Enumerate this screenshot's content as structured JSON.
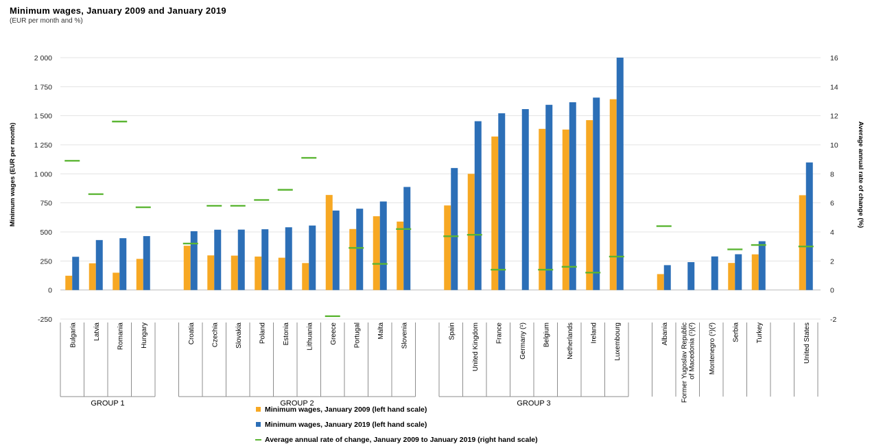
{
  "title": "Minimum wages, January 2009 and January 2019",
  "subtitle": "(EUR per month and %)",
  "chart_data": {
    "type": "bar",
    "title": "Minimum wages, January 2009 and January 2019",
    "subtitle": "(EUR per month and %)",
    "ylabel": "Minimum wages (EUR per month)",
    "y2label": "Average annual rate of change (%)",
    "ylim": [
      -250,
      2000
    ],
    "y_ticks": [
      -250,
      0,
      250,
      500,
      750,
      1000,
      1250,
      1500,
      1750,
      2000
    ],
    "y_tick_labels": [
      "-250",
      "0",
      "250",
      "500",
      "750",
      "1 000",
      "1 250",
      "1 500",
      "1 750",
      "2 000"
    ],
    "y2lim": [
      -2,
      16
    ],
    "y2_ticks": [
      -2,
      0,
      2,
      4,
      6,
      8,
      10,
      12,
      14,
      16
    ],
    "grid": true,
    "legend_position": "bottom",
    "categories": [
      "Bulgaria",
      "Latvia",
      "Romania",
      "Hungary",
      "",
      "Croatia",
      "Czechia",
      "Slovakia",
      "Poland",
      "Estonia",
      "Lithuania",
      "Greece",
      "Portugal",
      "Malta",
      "Slovenia",
      "",
      "Spain",
      "United Kingdom",
      "France",
      "Germany (¹)",
      "Belgium",
      "Netherlands",
      "Ireland",
      "Luxembourg",
      "",
      "Albania",
      "Former Yugoslav Republic of Macedonia (¹)(²)",
      "Montenegro (¹)(²)",
      "Serbia",
      "Turkey",
      "",
      "United States"
    ],
    "groups": [
      {
        "name": "GROUP 1",
        "first": 0,
        "last": 3
      },
      {
        "name": "GROUP 2",
        "first": 5,
        "last": 14
      },
      {
        "name": "GROUP 3",
        "first": 16,
        "last": 23
      }
    ],
    "series": [
      {
        "name": "Minimum wages, January 2009 (left hand scale)",
        "kind": "bar",
        "axis": "left",
        "color": "#F7A823",
        "values": [
          123,
          230,
          149,
          268,
          null,
          381,
          298,
          296,
          288,
          278,
          232,
          818,
          525,
          635,
          589,
          null,
          728,
          1000,
          1321,
          null,
          1387,
          1381,
          1462,
          1642,
          null,
          137,
          null,
          null,
          233,
          307,
          null,
          816
        ]
      },
      {
        "name": "Minimum wages, January 2019 (left hand scale)",
        "kind": "bar",
        "axis": "left",
        "color": "#2C6FB7",
        "values": [
          286,
          430,
          446,
          464,
          null,
          506,
          519,
          520,
          523,
          540,
          555,
          684,
          700,
          762,
          887,
          null,
          1050,
          1453,
          1521,
          1557,
          1594,
          1616,
          1656,
          2000,
          null,
          214,
          240,
          289,
          308,
          420,
          null,
          1098
        ]
      },
      {
        "name": "Average annual rate of change, January 2009 to January 2019 (right hand scale)",
        "kind": "marker",
        "axis": "right",
        "color": "#5BB533",
        "values": [
          8.9,
          6.6,
          11.6,
          5.7,
          null,
          3.2,
          5.8,
          5.8,
          6.2,
          6.9,
          9.1,
          -1.8,
          2.9,
          1.8,
          4.2,
          null,
          3.7,
          3.8,
          1.4,
          null,
          1.4,
          1.6,
          1.2,
          2.3,
          null,
          4.4,
          null,
          null,
          2.8,
          3.1,
          null,
          3.0
        ]
      }
    ]
  }
}
